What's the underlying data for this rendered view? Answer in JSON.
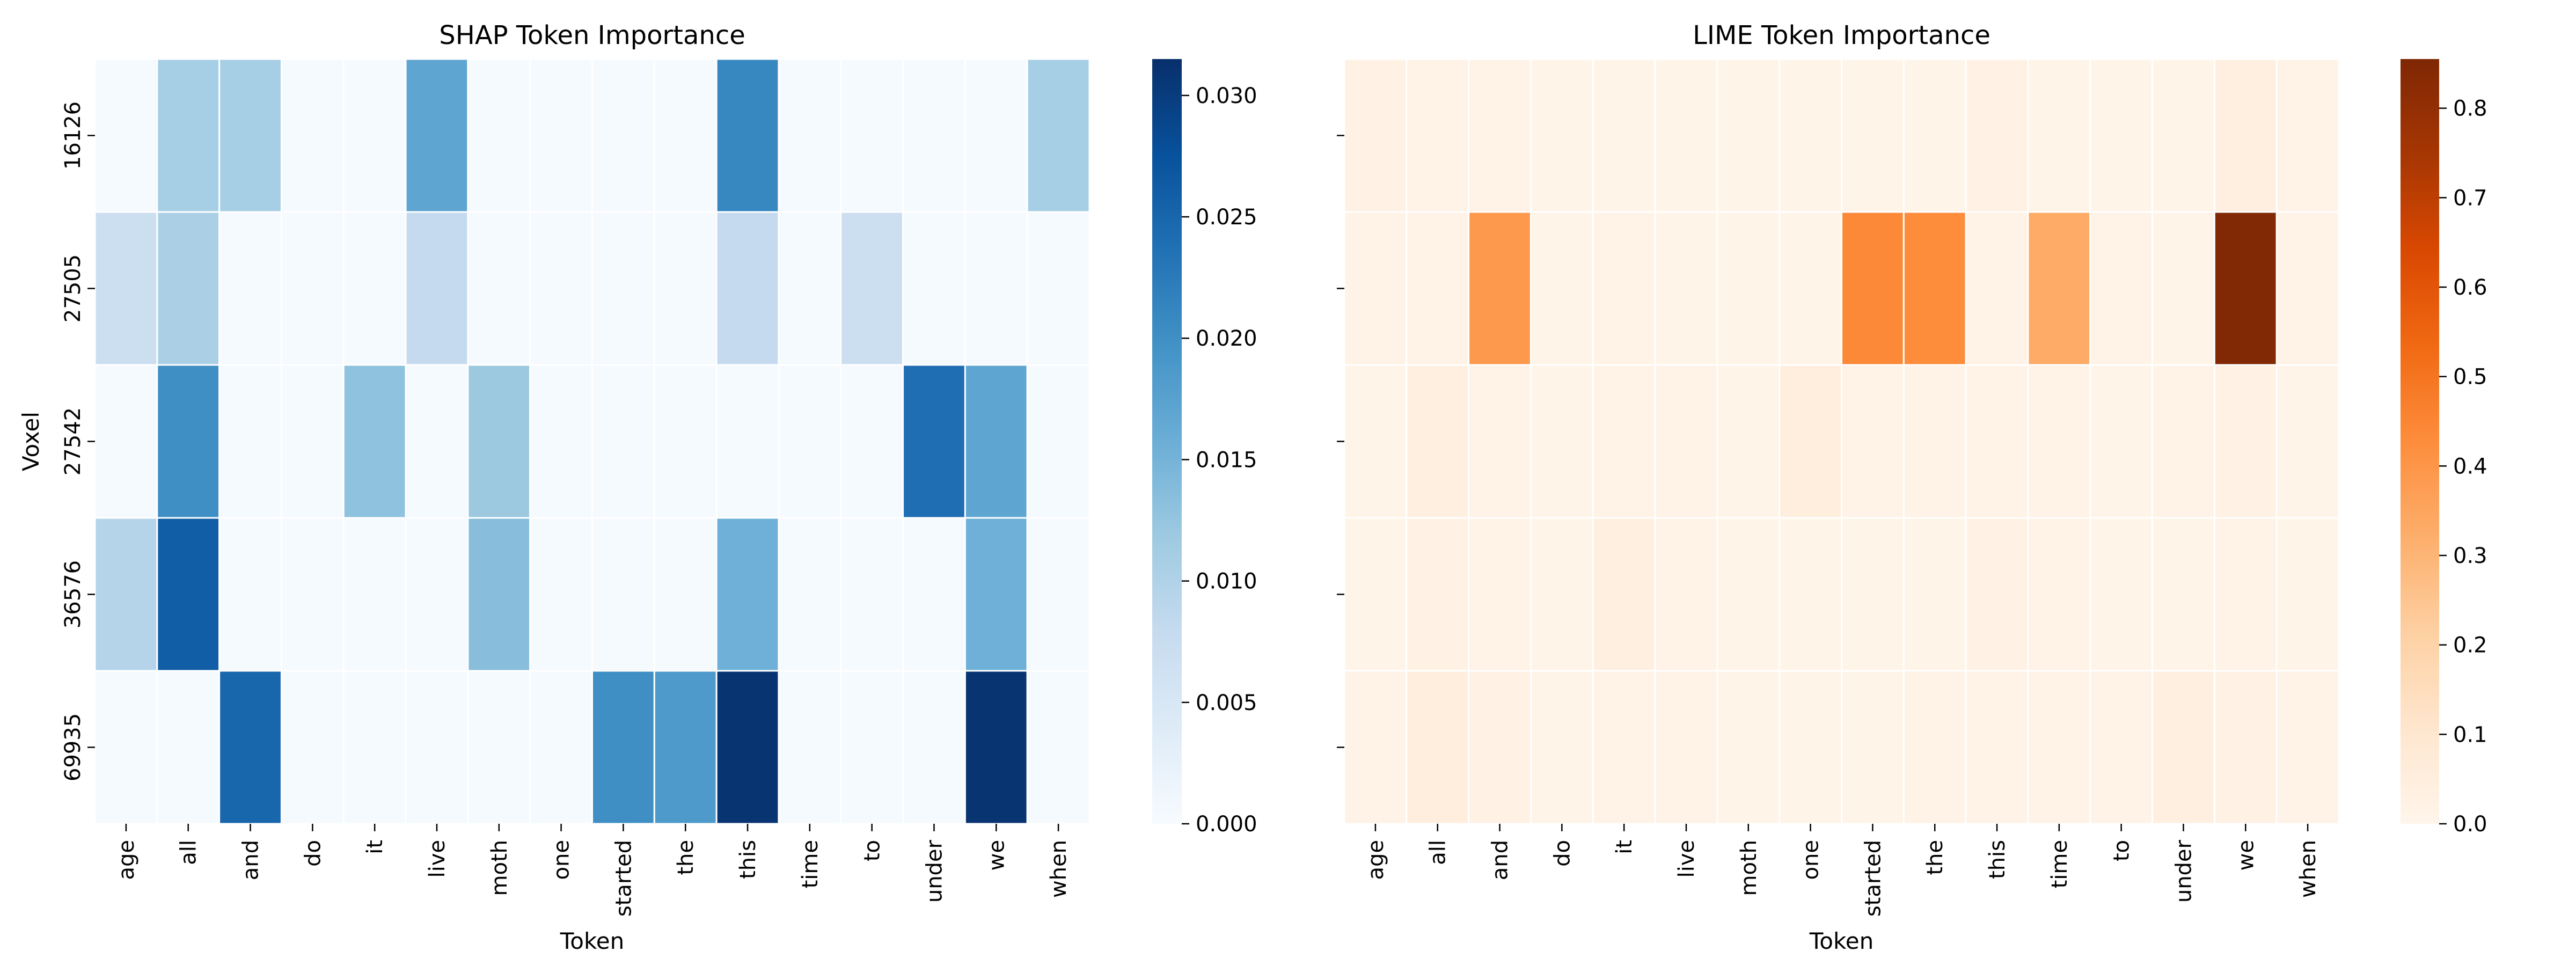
{
  "chart_data": [
    {
      "type": "heatmap",
      "title": "SHAP Token Importance",
      "xlabel": "Token",
      "ylabel": "Voxel",
      "x_categories": [
        "age",
        "all",
        "and",
        "do",
        "it",
        "live",
        "moth",
        "one",
        "started",
        "the",
        "this",
        "time",
        "to",
        "under",
        "we",
        "when"
      ],
      "y_categories": [
        "16126",
        "27505",
        "27542",
        "36576",
        "69935"
      ],
      "values": [
        [
          0.0003,
          0.011,
          0.011,
          0.0003,
          0.0003,
          0.017,
          0.0003,
          0.0003,
          0.0003,
          0.0003,
          0.021,
          0.0003,
          0.0003,
          0.0003,
          0.0003,
          0.011
        ],
        [
          0.007,
          0.0105,
          0.0003,
          0.0003,
          0.0003,
          0.008,
          0.0003,
          0.0003,
          0.0003,
          0.0003,
          0.008,
          0.0003,
          0.007,
          0.0003,
          0.0003,
          0.0003
        ],
        [
          0.0003,
          0.02,
          0.0003,
          0.0003,
          0.013,
          0.0003,
          0.012,
          0.0003,
          0.0003,
          0.0003,
          0.0003,
          0.0003,
          0.0003,
          0.024,
          0.017,
          0.0003
        ],
        [
          0.0095,
          0.026,
          0.0003,
          0.0003,
          0.0003,
          0.0003,
          0.0135,
          0.0003,
          0.0003,
          0.0003,
          0.0155,
          0.0003,
          0.0003,
          0.0003,
          0.0155,
          0.0003
        ],
        [
          0.0003,
          0.0003,
          0.025,
          0.0003,
          0.0003,
          0.0003,
          0.0003,
          0.0003,
          0.02,
          0.0185,
          0.031,
          0.0003,
          0.0003,
          0.0003,
          0.031,
          0.0003
        ]
      ],
      "colorbar": {
        "colormap": "Blues",
        "range": [
          0,
          0.0315
        ],
        "ticks": [
          0.0,
          0.005,
          0.01,
          0.015,
          0.02,
          0.025,
          0.03
        ],
        "tick_labels": [
          "0.000",
          "0.005",
          "0.010",
          "0.015",
          "0.020",
          "0.025",
          "0.030"
        ]
      },
      "grid": false,
      "show_y_tick_labels": true
    },
    {
      "type": "heatmap",
      "title": "LIME Token Importance",
      "xlabel": "Token",
      "ylabel": "",
      "x_categories": [
        "age",
        "all",
        "and",
        "do",
        "it",
        "live",
        "moth",
        "one",
        "started",
        "the",
        "this",
        "time",
        "to",
        "under",
        "we",
        "when"
      ],
      "y_categories": [
        "16126",
        "27505",
        "27542",
        "36576",
        "69935"
      ],
      "values": [
        [
          0.03,
          0.02,
          0.02,
          0.01,
          0.01,
          0.01,
          0.01,
          0.01,
          0.01,
          0.01,
          0.03,
          0.01,
          0.01,
          0.01,
          0.04,
          0.02
        ],
        [
          0.02,
          0.02,
          0.39,
          0.01,
          0.02,
          0.01,
          0.01,
          0.01,
          0.44,
          0.43,
          0.02,
          0.33,
          0.02,
          0.01,
          0.85,
          0.02
        ],
        [
          0.01,
          0.04,
          0.02,
          0.01,
          0.02,
          0.02,
          0.01,
          0.05,
          0.02,
          0.02,
          0.02,
          0.02,
          0.01,
          0.02,
          0.03,
          0.01
        ],
        [
          0.01,
          0.03,
          0.02,
          0.01,
          0.04,
          0.02,
          0.01,
          0.01,
          0.01,
          0.01,
          0.03,
          0.02,
          0.01,
          0.01,
          0.02,
          0.01
        ],
        [
          0.02,
          0.05,
          0.03,
          0.01,
          0.02,
          0.02,
          0.01,
          0.01,
          0.01,
          0.02,
          0.02,
          0.02,
          0.02,
          0.04,
          0.03,
          0.02
        ]
      ],
      "colorbar": {
        "colormap": "Oranges",
        "range": [
          0,
          0.855
        ],
        "ticks": [
          0.0,
          0.1,
          0.2,
          0.3,
          0.4,
          0.5,
          0.6,
          0.7,
          0.8
        ],
        "tick_labels": [
          "0.0",
          "0.1",
          "0.2",
          "0.3",
          "0.4",
          "0.5",
          "0.6",
          "0.7",
          "0.8"
        ]
      },
      "grid": false,
      "show_y_tick_labels": false
    }
  ]
}
